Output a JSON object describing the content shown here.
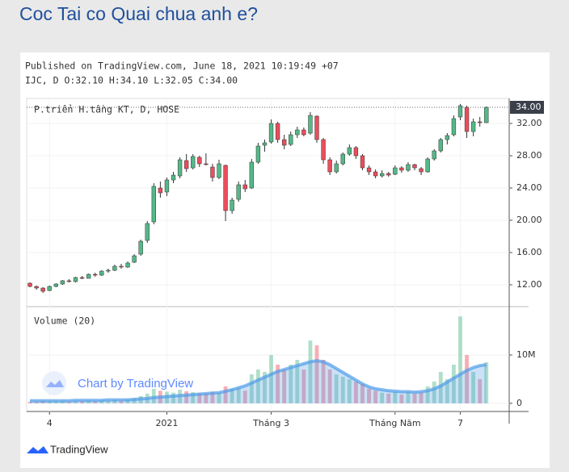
{
  "page": {
    "title": "Coc Tai co Quai chua anh e?",
    "footer_brand": "TradingView"
  },
  "chart_data": {
    "type": "candlestick",
    "published": "Published on TradingView.com, June 18, 2021 10:19:49 +07",
    "header": "IJC, D O:32.10 H:34.10 L:32.05 C:34.00",
    "series_label": "P.triển H.tầng KT, D, HOSE",
    "volume_label": "Volume (20)",
    "watermark": "Chart by TradingView",
    "up_color": "#53b987",
    "down_color": "#eb4d5c",
    "ma_color": "#4f9be8",
    "grid": true,
    "xlim": [
      -0.5,
      73.5
    ],
    "xticks": [
      {
        "value": 3,
        "label": "4"
      },
      {
        "value": 21,
        "label": "2021"
      },
      {
        "value": 37,
        "label": "Tháng 3"
      },
      {
        "value": 56,
        "label": "Tháng Năm"
      },
      {
        "value": 66,
        "label": "7"
      }
    ],
    "ylim": [
      9.6,
      35.1
    ],
    "yticks": [
      {
        "value": 12,
        "label": "12.00"
      },
      {
        "value": 16,
        "label": "16.00"
      },
      {
        "value": 20,
        "label": "20.00"
      },
      {
        "value": 24,
        "label": "24.00"
      },
      {
        "value": 28,
        "label": "28.00"
      },
      {
        "value": 32,
        "label": "32.00"
      }
    ],
    "last_price": {
      "value": 34,
      "label": "34.00"
    },
    "vlim": [
      -1.7,
      19.2
    ],
    "vticks": [
      0,
      {
        "value": 10,
        "label": "10M"
      }
    ],
    "open": [
      12.2,
      11.8,
      11.6,
      11.3,
      11.8,
      12.1,
      12.5,
      12.4,
      12.9,
      12.8,
      13.3,
      13.2,
      13.7,
      13.8,
      14.3,
      14.2,
      14.8,
      15.8,
      17.5,
      19.8,
      24.0,
      23.5,
      25.0,
      25.5,
      27.4,
      26.5,
      27.8,
      27.0,
      26.6,
      25.3,
      26.8,
      21.2,
      22.6,
      24.4,
      24.0,
      27.2,
      29.3,
      29.7,
      32.0,
      30.0,
      29.4,
      30.6,
      31.2,
      30.8,
      32.9,
      30.0,
      27.5,
      26.0,
      27.0,
      28.2,
      29.0,
      28.0,
      26.5,
      26.0,
      25.5,
      25.8,
      25.7,
      26.5,
      26.2,
      26.9,
      26.4,
      26.0,
      27.6,
      28.6,
      30.0,
      30.6,
      32.8,
      34.0,
      31.0,
      32.2,
      32.1
    ],
    "high": [
      12.3,
      11.9,
      11.7,
      11.9,
      12.2,
      12.6,
      12.7,
      13.0,
      13.1,
      13.4,
      13.5,
      13.8,
      14.0,
      14.5,
      14.6,
      14.9,
      15.8,
      17.6,
      19.9,
      24.6,
      24.8,
      25.3,
      26.0,
      27.8,
      28.2,
      28.2,
      28.0,
      28.3,
      27.0,
      27.5,
      26.9,
      22.8,
      24.8,
      25.0,
      27.6,
      29.6,
      30.0,
      32.5,
      32.2,
      30.6,
      31.0,
      31.6,
      31.5,
      33.4,
      33.0,
      30.2,
      27.8,
      27.4,
      28.4,
      29.4,
      29.2,
      28.2,
      26.8,
      26.3,
      26.2,
      26.0,
      26.8,
      26.7,
      27.2,
      27.0,
      26.6,
      27.8,
      28.8,
      30.2,
      30.8,
      33.0,
      34.4,
      34.2,
      32.6,
      32.8,
      34.1
    ],
    "low": [
      11.7,
      11.4,
      11.0,
      11.2,
      11.7,
      12.0,
      12.3,
      12.3,
      12.7,
      12.8,
      13.0,
      13.1,
      13.5,
      13.7,
      14.0,
      14.1,
      14.7,
      15.6,
      17.2,
      19.5,
      22.8,
      23.0,
      24.6,
      25.2,
      26.0,
      26.3,
      26.6,
      26.8,
      24.8,
      25.1,
      19.9,
      20.8,
      22.3,
      23.5,
      23.9,
      27.0,
      28.5,
      29.5,
      29.6,
      28.8,
      29.2,
      30.2,
      30.4,
      30.6,
      29.6,
      27.0,
      25.6,
      25.8,
      26.8,
      28.0,
      27.6,
      26.2,
      25.6,
      25.2,
      25.3,
      25.4,
      25.6,
      25.9,
      26.0,
      26.2,
      25.6,
      25.9,
      27.4,
      28.4,
      29.4,
      30.4,
      32.4,
      30.2,
      30.4,
      31.6,
      32.05
    ],
    "close": [
      11.8,
      11.6,
      11.2,
      11.8,
      12.1,
      12.5,
      12.4,
      12.9,
      12.8,
      13.3,
      13.2,
      13.7,
      13.8,
      14.3,
      14.2,
      14.7,
      15.6,
      17.4,
      19.6,
      24.2,
      23.4,
      25.0,
      25.6,
      27.5,
      26.4,
      27.9,
      27.0,
      26.9,
      25.3,
      27.0,
      21.2,
      22.5,
      24.4,
      23.9,
      27.2,
      29.2,
      29.6,
      32.0,
      30.0,
      29.3,
      30.6,
      31.2,
      30.6,
      33.0,
      30.0,
      27.5,
      26.0,
      27.0,
      28.2,
      29.0,
      28.0,
      26.5,
      26.0,
      25.5,
      25.8,
      25.6,
      26.5,
      26.2,
      26.9,
      26.5,
      26.0,
      27.6,
      28.6,
      30.0,
      30.5,
      32.6,
      34.2,
      31.0,
      32.2,
      32.1,
      34.0
    ],
    "volume": [
      0.3,
      0.3,
      0.5,
      0.4,
      0.4,
      0.5,
      0.3,
      0.5,
      0.4,
      0.6,
      0.4,
      0.6,
      0.5,
      0.7,
      0.5,
      0.8,
      1.0,
      1.5,
      2.0,
      3.0,
      2.6,
      2.4,
      2.2,
      2.8,
      2.5,
      2.3,
      2.1,
      2.0,
      2.4,
      2.2,
      3.5,
      3.0,
      3.2,
      2.6,
      6.0,
      7.0,
      6.5,
      10.0,
      8.0,
      7.0,
      8.0,
      9.0,
      7.0,
      13.0,
      12.0,
      9.0,
      7.0,
      6.0,
      5.5,
      5.0,
      4.5,
      4.0,
      3.0,
      2.6,
      2.2,
      2.0,
      2.3,
      1.8,
      2.4,
      2.0,
      2.2,
      3.5,
      4.5,
      6.5,
      5.0,
      8.0,
      18.0,
      10.0,
      6.5,
      5.0,
      8.5
    ],
    "volume_ma": [
      0.5,
      0.5,
      0.5,
      0.5,
      0.5,
      0.5,
      0.5,
      0.6,
      0.6,
      0.6,
      0.6,
      0.6,
      0.7,
      0.7,
      0.7,
      0.7,
      0.8,
      0.9,
      1.0,
      1.2,
      1.3,
      1.4,
      1.5,
      1.6,
      1.7,
      1.8,
      1.9,
      2.0,
      2.1,
      2.2,
      2.5,
      2.8,
      3.2,
      3.6,
      4.2,
      4.8,
      5.4,
      6.0,
      6.6,
      7.0,
      7.4,
      7.8,
      8.2,
      8.6,
      8.8,
      8.6,
      8.0,
      7.2,
      6.4,
      5.6,
      4.8,
      4.0,
      3.4,
      3.0,
      2.8,
      2.6,
      2.5,
      2.4,
      2.4,
      2.3,
      2.4,
      2.6,
      3.0,
      3.6,
      4.4,
      5.2,
      6.0,
      6.8,
      7.4,
      7.8,
      8.0
    ]
  }
}
